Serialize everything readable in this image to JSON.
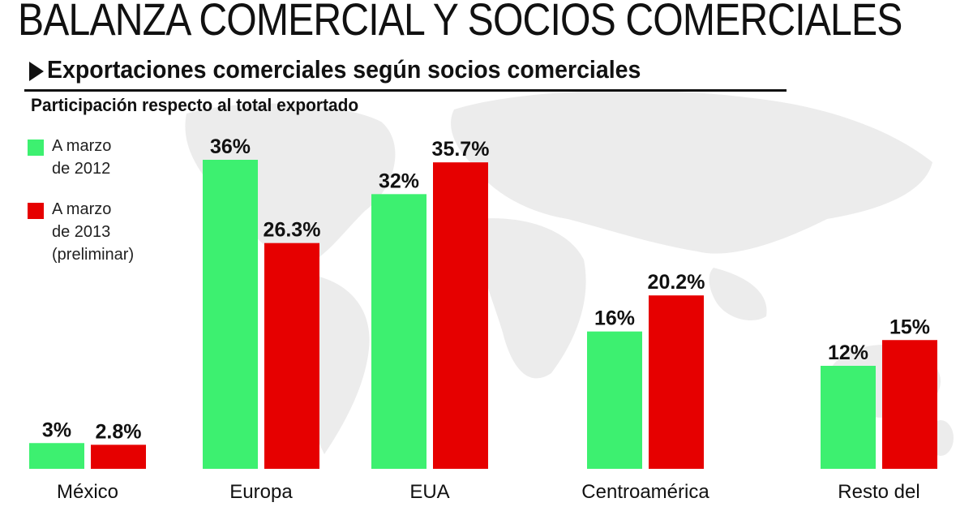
{
  "header": {
    "title": "BALANZA COMERCIAL Y SOCIOS COMERCIALES",
    "subtitle": "Exportaciones comerciales según socios comerciales",
    "note": "Participación respecto al total exportado"
  },
  "colors": {
    "series_2012": "#3df070",
    "series_2013": "#e60000"
  },
  "legend": {
    "items": [
      {
        "label": "A marzo\nde 2012",
        "color": "#3df070"
      },
      {
        "label": "A marzo\nde 2013\n(preliminar)",
        "color": "#e60000"
      }
    ]
  },
  "chart_data": {
    "type": "bar",
    "title": "Exportaciones comerciales según socios comerciales",
    "ylabel": "Participación respecto al total exportado",
    "categories": [
      "México",
      "Europa",
      "EUA",
      "Centroamérica",
      "Resto del"
    ],
    "series": [
      {
        "name": "A marzo de 2012",
        "values": [
          3,
          36,
          32,
          16,
          12
        ],
        "labels": [
          "3%",
          "36%",
          "32%",
          "16%",
          "12%"
        ]
      },
      {
        "name": "A marzo de 2013 (preliminar)",
        "values": [
          2.8,
          26.3,
          35.7,
          20.2,
          15
        ],
        "labels": [
          "2.8%",
          "26.3%",
          "35.7%",
          "20.2%",
          "15%"
        ]
      }
    ],
    "ylim": [
      0,
      38
    ],
    "grid": false,
    "legend_position": "left"
  }
}
